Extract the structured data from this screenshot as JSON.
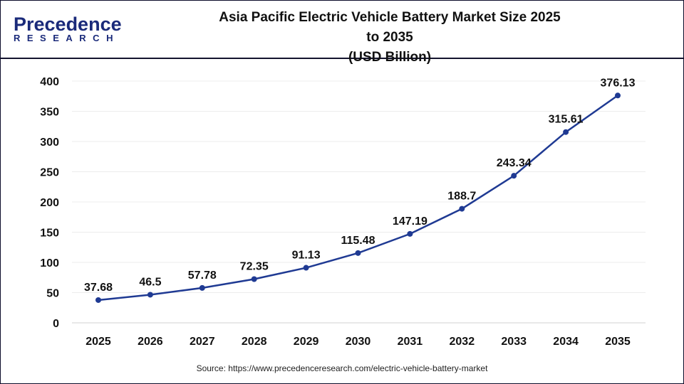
{
  "logo": {
    "line1": "Precedence",
    "line2": "RESEARCH"
  },
  "title": {
    "line1": "Asia Pacific Electric Vehicle Battery Market Size 2025 to 2035",
    "line2": "(USD Billion)"
  },
  "source": "Source: https://www.precedenceresearch.com/electric-vehicle-battery-market",
  "chart_data": {
    "type": "line",
    "categories": [
      "2025",
      "2026",
      "2027",
      "2028",
      "2029",
      "2030",
      "2031",
      "2032",
      "2033",
      "2034",
      "2035"
    ],
    "values": [
      37.68,
      46.5,
      57.78,
      72.35,
      91.13,
      115.48,
      147.19,
      188.7,
      243.34,
      315.61,
      376.13
    ],
    "data_labels": [
      "37.68",
      "46.5",
      "57.78",
      "72.35",
      "91.13",
      "115.48",
      "147.19",
      "188.7",
      "243.34",
      "315.61",
      "376.13"
    ],
    "yticks": [
      0,
      50,
      100,
      150,
      200,
      250,
      300,
      350,
      400
    ],
    "ylim": [
      0,
      400
    ],
    "grid": true,
    "line_color": "#1f3a93"
  }
}
